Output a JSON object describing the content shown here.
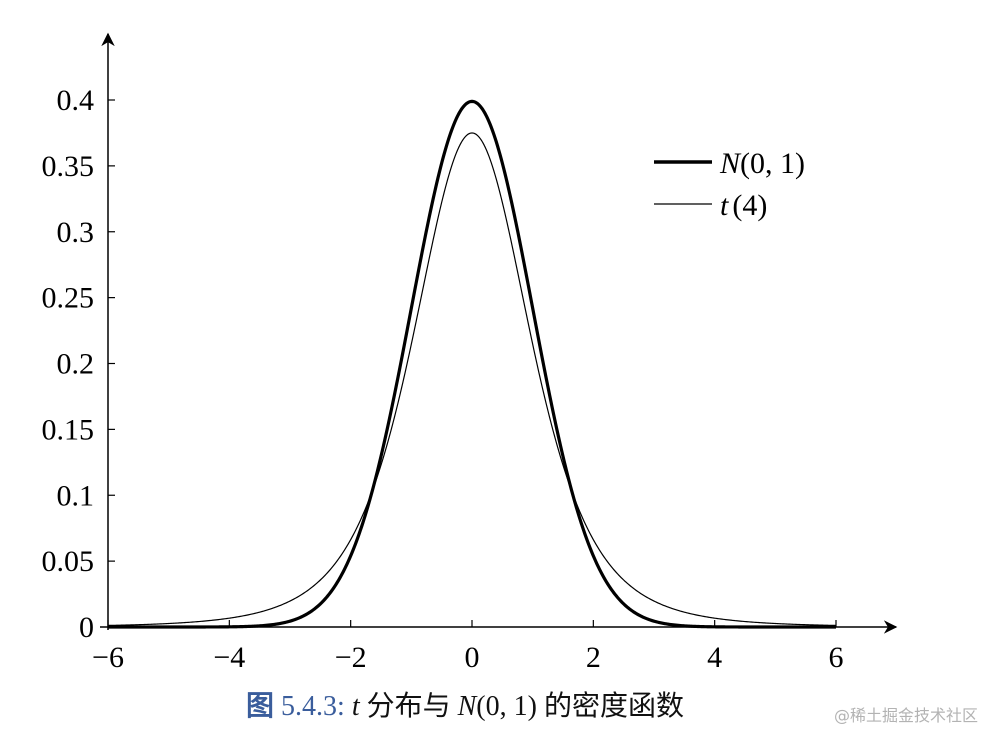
{
  "chart_data": {
    "type": "line",
    "x_ticks": [
      "−6",
      "−4",
      "−2",
      "0",
      "2",
      "4",
      "6"
    ],
    "y_ticks": [
      "0",
      "0.05",
      "0.1",
      "0.15",
      "0.2",
      "0.25",
      "0.3",
      "0.35",
      "0.4"
    ],
    "xlim": [
      -6,
      6
    ],
    "ylim": [
      0,
      0.4
    ],
    "series": [
      {
        "name_main": "N",
        "name_args": "(0, 1)",
        "distribution": "normal",
        "mean": 0,
        "sd": 1,
        "peak": 0.399,
        "line": "thick",
        "color": "#000000"
      },
      {
        "name_main": "t",
        "name_args": "(4)",
        "distribution": "student-t",
        "df": 4,
        "peak": 0.375,
        "line": "thin",
        "color": "#000000"
      }
    ],
    "legend_position": "top-right",
    "grid": false
  },
  "caption": {
    "label": "图",
    "number": "5.4.3:",
    "var": "t",
    "text1": "分布与",
    "var2": "N",
    "args2": "(0, 1)",
    "text2": "的密度函数"
  },
  "watermark": "@稀土掘金技术社区"
}
